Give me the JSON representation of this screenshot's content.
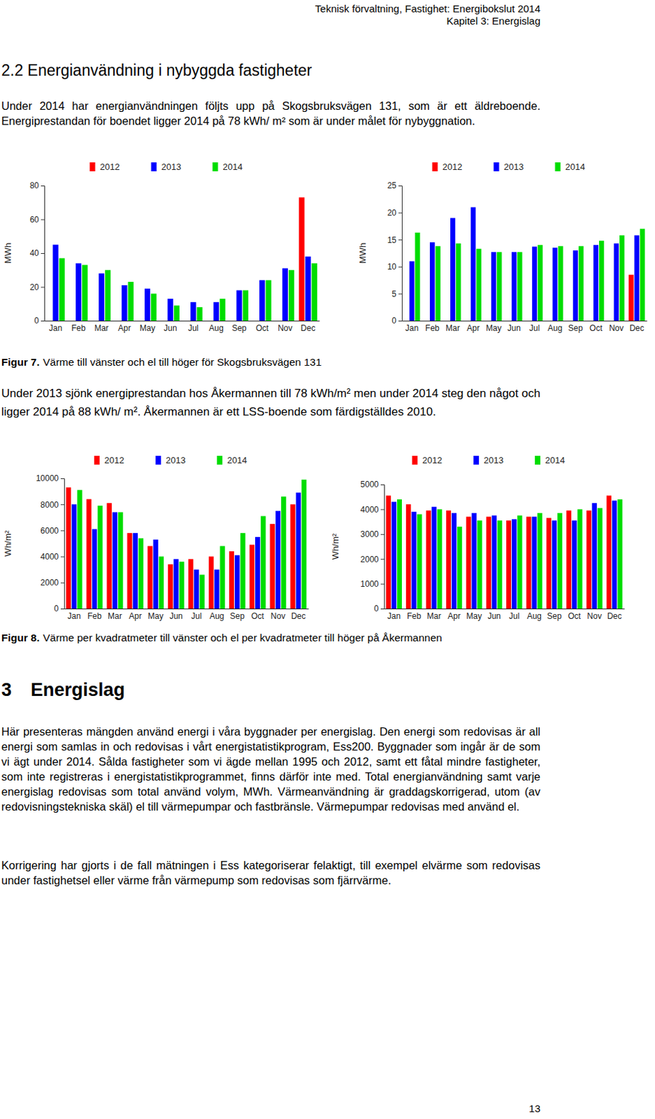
{
  "header": [
    "Teknisk förvaltning, Fastighet: Energibokslut 2014",
    "Kapitel 3: Energislag"
  ],
  "section_2_2": {
    "heading": "2.2 Energianvändning i nybyggda fastigheter",
    "paragraphs": [
      "Under 2014 har energianvändningen följts upp på Skogsbruksvägen 131, som är ett äldreboende. Energiprestandan för boendet ligger 2014 på 78 kWh/ m² som är under målet för nybyggnation.",
      "Under 2013 sjönk energiprestandan hos Åkermannen till 78 kWh/m² men under 2014 steg den något och ligger 2014 på 88 kWh/ m². Åkermannen är ett LSS-boende som färdigställdes 2010."
    ]
  },
  "figures": [
    {
      "label": "Figur 7.",
      "caption": "Värme till vänster och el till höger för Skogsbruksvägen 131"
    },
    {
      "label": "Figur 8.",
      "caption": "Värme per kvadratmeter till vänster och el per kvadratmeter till höger på Åkermannen"
    }
  ],
  "chart_data": [
    {
      "type": "bar",
      "ylabel": "MWh",
      "categories": [
        "Jan",
        "Feb",
        "Mar",
        "Apr",
        "May",
        "Jun",
        "Jul",
        "Aug",
        "Sep",
        "Oct",
        "Nov",
        "Dec"
      ],
      "series": [
        {
          "name": "2012",
          "color": "#ff0000",
          "values": [
            null,
            null,
            null,
            null,
            null,
            null,
            null,
            null,
            null,
            null,
            null,
            73
          ]
        },
        {
          "name": "2013",
          "color": "#0000ff",
          "values": [
            45,
            34,
            28,
            21,
            19,
            13,
            11,
            11,
            18,
            24,
            31,
            38
          ]
        },
        {
          "name": "2014",
          "color": "#00dd00",
          "values": [
            37,
            33,
            30,
            23,
            16,
            9,
            8,
            13,
            18,
            24,
            30,
            34
          ]
        }
      ],
      "ylim": [
        0,
        80
      ],
      "yticks": [
        0,
        20,
        40,
        60,
        80
      ],
      "grid": false,
      "legend": "top"
    },
    {
      "type": "bar",
      "ylabel": "MWh",
      "categories": [
        "Jan",
        "Feb",
        "Mar",
        "Apr",
        "May",
        "Jun",
        "Jul",
        "Aug",
        "Sep",
        "Oct",
        "Nov",
        "Dec"
      ],
      "series": [
        {
          "name": "2012",
          "color": "#ff0000",
          "values": [
            null,
            null,
            null,
            null,
            null,
            null,
            null,
            null,
            null,
            null,
            null,
            8.5
          ]
        },
        {
          "name": "2013",
          "color": "#0000ff",
          "values": [
            11,
            14.5,
            19,
            21,
            12.7,
            12.7,
            13.7,
            13.5,
            13,
            14,
            14.3,
            15.8
          ]
        },
        {
          "name": "2014",
          "color": "#00dd00",
          "values": [
            16.3,
            13.8,
            14.3,
            13.3,
            12.7,
            12.7,
            14,
            13.8,
            13.8,
            14.8,
            15.8,
            17
          ]
        }
      ],
      "ylim": [
        0,
        25
      ],
      "yticks": [
        0,
        5,
        10,
        15,
        20,
        25
      ],
      "grid": false,
      "legend": "top"
    },
    {
      "type": "bar",
      "ylabel": "Wh/m²",
      "categories": [
        "Jan",
        "Feb",
        "Mar",
        "Apr",
        "May",
        "Jun",
        "Jul",
        "Aug",
        "Sep",
        "Oct",
        "Nov",
        "Dec"
      ],
      "series": [
        {
          "name": "2012",
          "color": "#ff0000",
          "values": [
            9300,
            8400,
            8100,
            5800,
            4800,
            3400,
            3800,
            4000,
            4400,
            4900,
            6500,
            8000
          ]
        },
        {
          "name": "2013",
          "color": "#0000ff",
          "values": [
            8000,
            6100,
            7400,
            5800,
            5300,
            3800,
            3000,
            3000,
            4100,
            5500,
            7500,
            8900
          ]
        },
        {
          "name": "2014",
          "color": "#00dd00",
          "values": [
            9100,
            7900,
            7400,
            5400,
            4000,
            3600,
            2600,
            4800,
            5800,
            7100,
            8600,
            9900
          ]
        }
      ],
      "ylim": [
        0,
        10000
      ],
      "yticks": [
        0,
        2000,
        4000,
        6000,
        8000,
        10000
      ],
      "grid": false,
      "legend": "top"
    },
    {
      "type": "bar",
      "ylabel": "Wh/m²",
      "categories": [
        "Jan",
        "Feb",
        "Mar",
        "Apr",
        "May",
        "Jun",
        "Jul",
        "Aug",
        "Sep",
        "Oct",
        "Nov",
        "Dec"
      ],
      "series": [
        {
          "name": "2012",
          "color": "#ff0000",
          "values": [
            4550,
            4200,
            3950,
            3950,
            3700,
            3700,
            3550,
            3700,
            3650,
            3950,
            3950,
            4550
          ]
        },
        {
          "name": "2013",
          "color": "#0000ff",
          "values": [
            4300,
            3900,
            4100,
            3850,
            3850,
            3750,
            3600,
            3700,
            3550,
            3550,
            4250,
            4350
          ]
        },
        {
          "name": "2014",
          "color": "#00dd00",
          "values": [
            4400,
            3800,
            4000,
            3300,
            3550,
            3550,
            3750,
            3850,
            3850,
            4000,
            4050,
            4400
          ]
        }
      ],
      "ylim": [
        0,
        5000
      ],
      "yticks": [
        0,
        1000,
        2000,
        3000,
        4000,
        5000
      ],
      "grid": false,
      "legend": "top"
    }
  ],
  "section_3": {
    "number": "3",
    "title": "Energislag",
    "paragraphs": [
      "Här presenteras mängden använd energi i våra byggnader per energislag. Den energi som redovisas är all energi som samlas in och redovisas i vårt energistatistikprogram, Ess200. Byggnader som ingår är de som vi ägt under 2014. Sålda fastigheter som vi ägde mellan 1995 och 2012, samt ett fåtal mindre fastigheter, som inte registreras i energistatistikprogrammet, finns därför inte med. Total energianvändning samt varje energislag redovisas som total använd volym, MWh. Värmeanvändning är graddagskorrigerad, utom (av redovisningstekniska skäl) el till värmepumpar och fastbränsle. Värmepumpar redovisas med använd el.",
      "Korrigering har gjorts i de fall mätningen i Ess kategoriserar felaktigt, till exempel elvärme som redovisas under fastighetsel eller värme från värmepump som redovisas som fjärrvärme."
    ]
  },
  "page_number": 13
}
